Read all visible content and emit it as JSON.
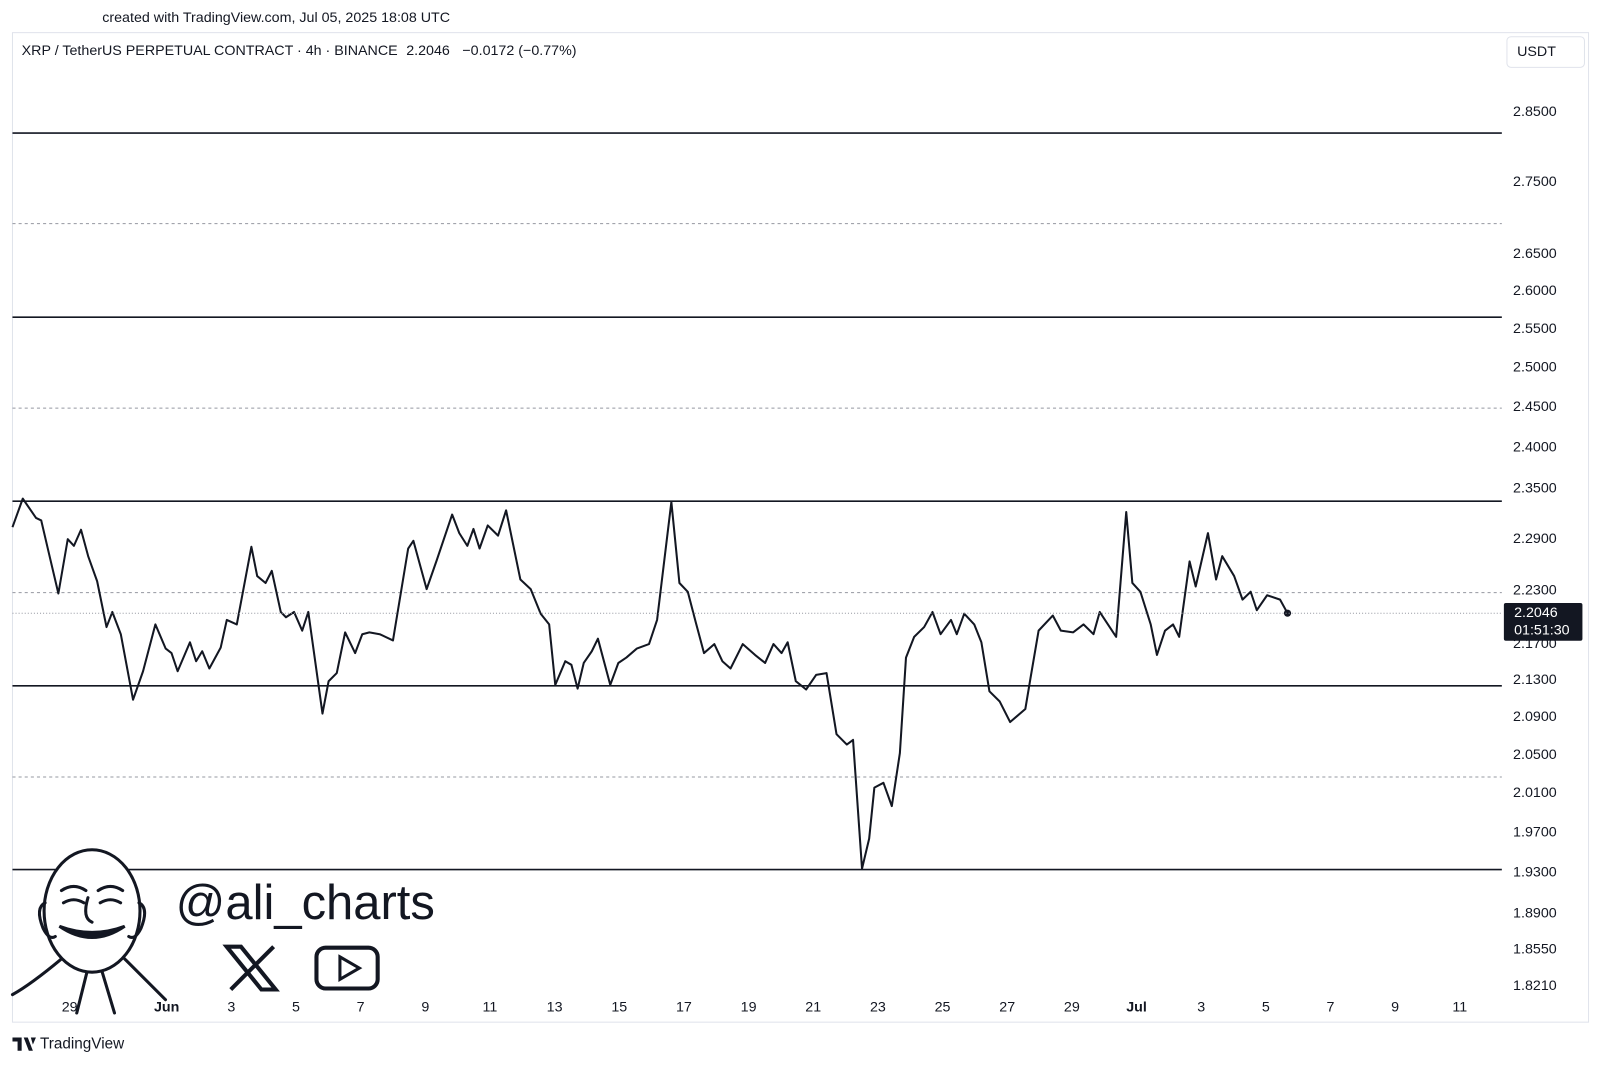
{
  "header": "created with TradingView.com, Jul 05, 2025 18:08 UTC",
  "footer": "TradingView",
  "watermark": "@ali_charts",
  "chart_data": {
    "type": "line",
    "title": "XRP / TetherUS PERPETUAL CONTRACT · 4h · BINANCE",
    "change": "−0.0172 (−0.77%)",
    "currency": "USDT",
    "last_price": 2.2046,
    "countdown": "01:51:30",
    "color": "#131722",
    "log_scale": true,
    "x": [
      -1.77,
      -1.45,
      -1.04,
      -0.88,
      -0.66,
      -0.35,
      -0.06,
      0.13,
      0.35,
      0.57,
      0.85,
      1.14,
      1.32,
      1.58,
      1.96,
      2.27,
      2.65,
      2.97,
      3.15,
      3.34,
      3.72,
      3.91,
      4.1,
      4.32,
      4.67,
      4.86,
      5.17,
      5.62,
      5.8,
      6.06,
      6.25,
      6.53,
      6.69,
      6.94,
      7.19,
      7.38,
      7.82,
      8.01,
      8.26,
      8.52,
      8.83,
      9.05,
      9.27,
      9.59,
      10.0,
      10.47,
      10.63,
      11.04,
      11.36,
      11.83,
      12.05,
      12.3,
      12.49,
      12.68,
      12.93,
      13.25,
      13.5,
      13.94,
      14.26,
      14.57,
      14.83,
      15.02,
      15.33,
      15.52,
      15.71,
      15.9,
      16.15,
      16.34,
      16.72,
      16.97,
      17.22,
      17.54,
      17.92,
      18.17,
      18.61,
      18.86,
      19.12,
      19.37,
      19.62,
      19.94,
      20.19,
      20.44,
      20.82,
      21.2,
      21.51,
      21.77,
      22.02,
      22.21,
      22.46,
      22.78,
      23.09,
      23.41,
      23.72,
      24.04,
      24.23,
      24.51,
      24.73,
      24.89,
      25.17,
      25.43,
      25.68,
      25.87,
      26.12,
      26.43,
      26.69,
      26.94,
      27.26,
      27.44,
      27.67,
      27.98,
      28.2,
      28.45,
      28.77,
      29.09,
      29.56,
      29.72,
      29.97,
      30.41,
      30.66,
      31.04,
      31.36,
      31.67,
      31.86,
      32.37,
      32.68,
      32.87,
      33.12,
      33.44,
      33.63,
      33.88,
      34.13,
      34.32,
      34.64,
      34.83,
      35.21,
      35.46,
      35.65,
      36.02,
      36.28,
      36.53,
      36.72,
      37.04,
      37.44,
      37.67
    ],
    "values": [
      2.304,
      2.338,
      2.315,
      2.312,
      2.276,
      2.227,
      2.29,
      2.282,
      2.301,
      2.27,
      2.241,
      2.189,
      2.206,
      2.181,
      2.109,
      2.14,
      2.192,
      2.165,
      2.16,
      2.14,
      2.172,
      2.151,
      2.162,
      2.143,
      2.166,
      2.197,
      2.192,
      2.281,
      2.247,
      2.239,
      2.253,
      2.206,
      2.2,
      2.206,
      2.185,
      2.206,
      2.094,
      2.129,
      2.138,
      2.183,
      2.16,
      2.181,
      2.183,
      2.181,
      2.174,
      2.279,
      2.288,
      2.232,
      2.266,
      2.319,
      2.297,
      2.282,
      2.302,
      2.279,
      2.306,
      2.294,
      2.324,
      2.243,
      2.232,
      2.204,
      2.192,
      2.125,
      2.151,
      2.147,
      2.121,
      2.149,
      2.162,
      2.176,
      2.125,
      2.149,
      2.155,
      2.165,
      2.17,
      2.197,
      2.334,
      2.239,
      2.229,
      2.194,
      2.16,
      2.17,
      2.151,
      2.143,
      2.17,
      2.158,
      2.149,
      2.17,
      2.16,
      2.172,
      2.129,
      2.12,
      2.136,
      2.138,
      2.072,
      2.061,
      2.066,
      1.934,
      1.964,
      2.016,
      2.021,
      1.997,
      2.052,
      2.155,
      2.178,
      2.189,
      2.206,
      2.181,
      2.197,
      2.181,
      2.204,
      2.192,
      2.172,
      2.118,
      2.107,
      2.085,
      2.099,
      2.132,
      2.185,
      2.202,
      2.185,
      2.183,
      2.192,
      2.181,
      2.206,
      2.178,
      2.322,
      2.239,
      2.229,
      2.192,
      2.158,
      2.185,
      2.192,
      2.178,
      2.264,
      2.235,
      2.297,
      2.243,
      2.27,
      2.247,
      2.22,
      2.229,
      2.208,
      2.225,
      2.22,
      2.2046
    ],
    "levels": [
      {
        "value": 2.82,
        "style": "solid"
      },
      {
        "value": 2.692,
        "style": "dashed"
      },
      {
        "value": 2.566,
        "style": "solid"
      },
      {
        "value": 2.449,
        "style": "dashed"
      },
      {
        "value": 2.335,
        "style": "solid"
      },
      {
        "value": 2.228,
        "style": "dashed"
      },
      {
        "value": 2.124,
        "style": "solid"
      },
      {
        "value": 2.027,
        "style": "dashed"
      },
      {
        "value": 1.933,
        "style": "solid"
      }
    ],
    "xlim": [
      -1.77,
      44.3
    ],
    "xticks": [
      {
        "value": 0,
        "label": "29"
      },
      {
        "value": 3,
        "label": "Jun"
      },
      {
        "value": 5,
        "label": "3"
      },
      {
        "value": 7,
        "label": "5"
      },
      {
        "value": 9,
        "label": "7"
      },
      {
        "value": 11,
        "label": "9"
      },
      {
        "value": 13,
        "label": "11"
      },
      {
        "value": 15,
        "label": "13"
      },
      {
        "value": 17,
        "label": "15"
      },
      {
        "value": 19,
        "label": "17"
      },
      {
        "value": 21,
        "label": "19"
      },
      {
        "value": 23,
        "label": "21"
      },
      {
        "value": 25,
        "label": "23"
      },
      {
        "value": 27,
        "label": "25"
      },
      {
        "value": 29,
        "label": "27"
      },
      {
        "value": 31,
        "label": "29"
      },
      {
        "value": 33,
        "label": "Jul"
      },
      {
        "value": 35,
        "label": "3"
      },
      {
        "value": 37,
        "label": "5"
      },
      {
        "value": 39,
        "label": "7"
      },
      {
        "value": 41,
        "label": "9"
      },
      {
        "value": 43,
        "label": "11"
      }
    ],
    "ylim": [
      1.813,
      2.969
    ],
    "yticks": [
      {
        "value": 2.85,
        "label": "2.8500"
      },
      {
        "value": 2.75,
        "label": "2.7500"
      },
      {
        "value": 2.65,
        "label": "2.6500"
      },
      {
        "value": 2.6,
        "label": "2.6000"
      },
      {
        "value": 2.55,
        "label": "2.5500"
      },
      {
        "value": 2.5,
        "label": "2.5000"
      },
      {
        "value": 2.45,
        "label": "2.4500"
      },
      {
        "value": 2.4,
        "label": "2.4000"
      },
      {
        "value": 2.35,
        "label": "2.3500"
      },
      {
        "value": 2.29,
        "label": "2.2900"
      },
      {
        "value": 2.23,
        "label": "2.2300"
      },
      {
        "value": 2.17,
        "label": "2.1700"
      },
      {
        "value": 2.13,
        "label": "2.1300"
      },
      {
        "value": 2.09,
        "label": "2.0900"
      },
      {
        "value": 2.05,
        "label": "2.0500"
      },
      {
        "value": 2.01,
        "label": "2.0100"
      },
      {
        "value": 1.97,
        "label": "1.9700"
      },
      {
        "value": 1.93,
        "label": "1.9300"
      },
      {
        "value": 1.89,
        "label": "1.8900"
      },
      {
        "value": 1.855,
        "label": "1.8550"
      },
      {
        "value": 1.821,
        "label": "1.8210"
      }
    ]
  }
}
